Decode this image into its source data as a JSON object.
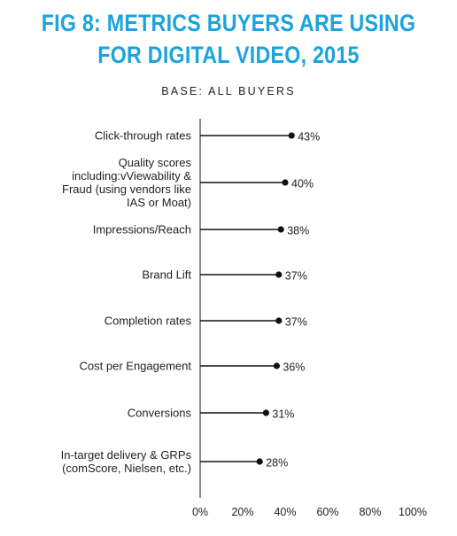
{
  "title_lines": [
    "FIG 8:  METRICS BUYERS ARE USING",
    "FOR DIGITAL VIDEO, 2015"
  ],
  "subtitle": "BASE: ALL BUYERS",
  "colors": {
    "title": "#1aa3dc",
    "marker": "#111111",
    "axis": "#111111",
    "text": "#222222"
  },
  "chart_data": {
    "type": "scatter",
    "style": "lollipop",
    "orientation": "horizontal",
    "title": "FIG 8:  METRICS BUYERS ARE USING FOR DIGITAL VIDEO, 2015",
    "subtitle": "BASE: ALL BUYERS",
    "xlabel": "",
    "ylabel": "",
    "xlim": [
      0,
      100
    ],
    "grid": false,
    "legend": "none",
    "categories": [
      [
        "Click-through rates"
      ],
      [
        "Quality scores",
        "including:vViewability &",
        "Fraud (using vendors like",
        "IAS or Moat)"
      ],
      [
        "Impressions/Reach"
      ],
      [
        "Brand Lift"
      ],
      [
        "Completion rates"
      ],
      [
        "Cost per Engagement"
      ],
      [
        "Conversions"
      ],
      [
        "In-target delivery & GRPs",
        "(comScore, Nielsen, etc.)"
      ]
    ],
    "values": [
      43,
      40,
      38,
      37,
      37,
      36,
      31,
      28
    ],
    "value_labels": [
      "43%",
      "40%",
      "38%",
      "37%",
      "37%",
      "36%",
      "31%",
      "28%"
    ],
    "xticks": [
      0,
      20,
      40,
      60,
      80,
      100
    ],
    "xtick_labels": [
      "0%",
      "20%",
      "40%",
      "60%",
      "80%",
      "100%"
    ]
  }
}
